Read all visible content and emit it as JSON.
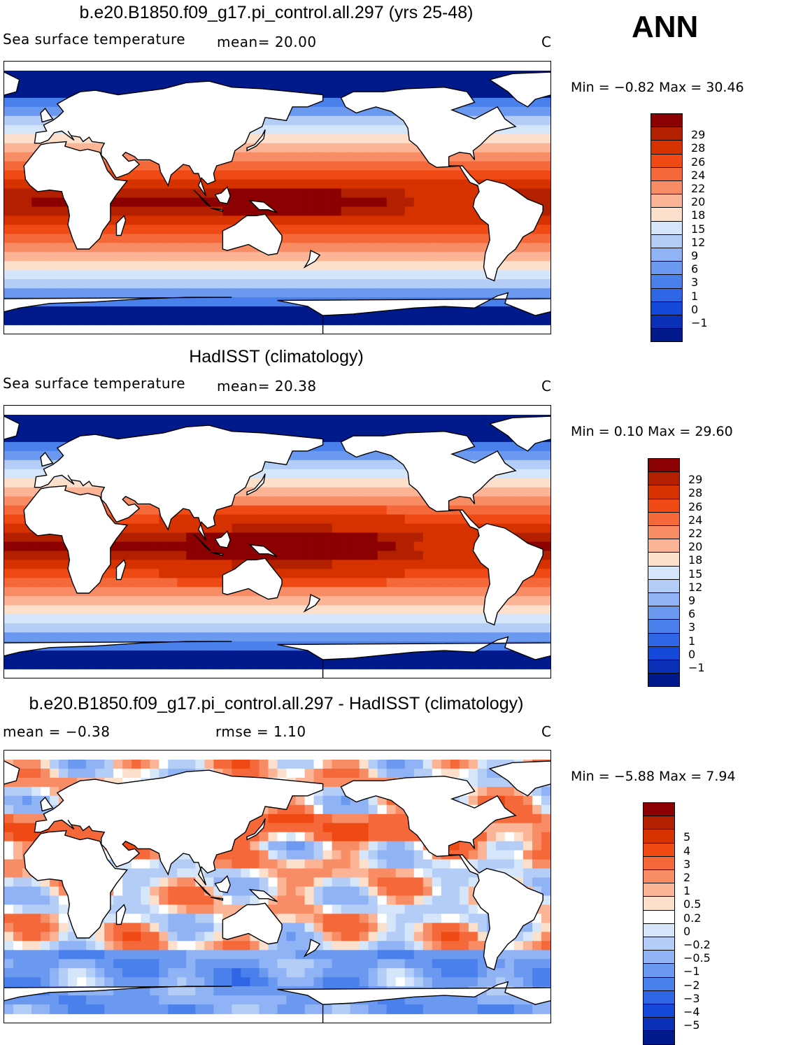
{
  "season": "ANN",
  "panels": [
    {
      "title": "b.e20.B1850.f09_g17.pi_control.all.297 (yrs 25-48)",
      "left_label": "Sea surface temperature",
      "mean_text": "mean=   20.00",
      "units": "C",
      "minmax": "Min =   −0.82  Max =   30.46",
      "field": "sst-model",
      "colorbar": {
        "colors": [
          "#8b0000",
          "#b22000",
          "#d63200",
          "#f04a14",
          "#f5683a",
          "#f78c65",
          "#fbb596",
          "#fde0cc",
          "#d6e6fa",
          "#b4cdf7",
          "#8fb3f4",
          "#6b99ef",
          "#4a80ec",
          "#2e66e6",
          "#1448d8",
          "#0a30b8",
          "#001a8c"
        ],
        "labels": [
          "29",
          "28",
          "26",
          "24",
          "22",
          "20",
          "18",
          "15",
          "12",
          "9",
          "6",
          "3",
          "1",
          "0",
          "−1"
        ]
      }
    },
    {
      "title": "HadISST (climatology)",
      "left_label": "Sea surface temperature",
      "mean_text": "mean=   20.38",
      "units": "C",
      "minmax": "Min =    0.10  Max =   29.60",
      "field": "sst-obs",
      "colorbar": {
        "colors": [
          "#8b0000",
          "#b22000",
          "#d63200",
          "#f04a14",
          "#f5683a",
          "#f78c65",
          "#fbb596",
          "#fde0cc",
          "#d6e6fa",
          "#b4cdf7",
          "#8fb3f4",
          "#6b99ef",
          "#4a80ec",
          "#2e66e6",
          "#1448d8",
          "#0a30b8",
          "#001a8c"
        ],
        "labels": [
          "29",
          "28",
          "26",
          "24",
          "22",
          "20",
          "18",
          "15",
          "12",
          "9",
          "6",
          "3",
          "1",
          "0",
          "−1"
        ]
      }
    },
    {
      "title": "b.e20.B1850.f09_g17.pi_control.all.297 - HadISST (climatology)",
      "left_label": "mean =   −0.38",
      "mean_text": "rmse =    1.10",
      "units": "C",
      "minmax": "Min =   −5.88  Max =    7.94",
      "field": "sst-diff",
      "colorbar": {
        "colors": [
          "#8b0000",
          "#b22000",
          "#d63200",
          "#f04a14",
          "#f5683a",
          "#f78c65",
          "#fbb596",
          "#fde0cc",
          "#ffffff",
          "#d6e6fa",
          "#b4cdf7",
          "#8fb3f4",
          "#6b99ef",
          "#4a80ec",
          "#2e66e6",
          "#1448d8",
          "#0a30b8",
          "#001a8c"
        ],
        "labels": [
          "5",
          "4",
          "3",
          "2",
          "1",
          "0.5",
          "0.2",
          "0",
          "−0.2",
          "−0.5",
          "−1",
          "−2",
          "−3",
          "−4",
          "−5"
        ]
      }
    }
  ]
}
